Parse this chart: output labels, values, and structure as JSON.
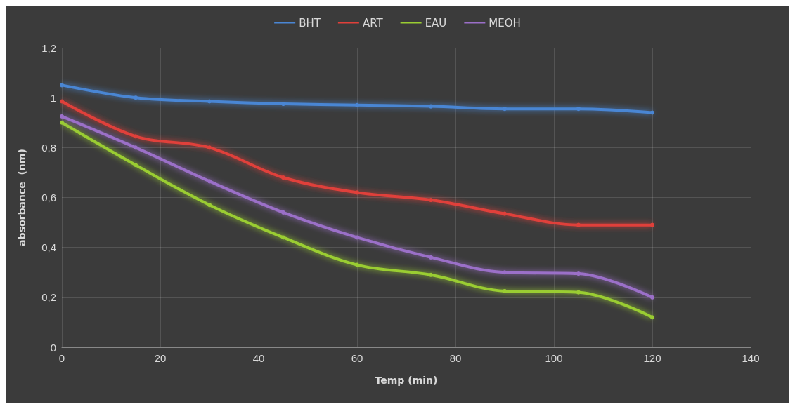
{
  "chart_data": {
    "type": "line",
    "xlabel": "Temp (min)",
    "ylabel": "absorbance  (nm)",
    "x": [
      0,
      15,
      30,
      45,
      60,
      75,
      90,
      105,
      120
    ],
    "series": [
      {
        "name": "BHT",
        "color": "#4a86d4",
        "values": [
          1.05,
          1.0,
          0.985,
          0.975,
          0.97,
          0.965,
          0.955,
          0.955,
          0.94
        ]
      },
      {
        "name": "ART",
        "color": "#e0403a",
        "values": [
          0.985,
          0.845,
          0.8,
          0.68,
          0.62,
          0.59,
          0.535,
          0.49,
          0.49
        ]
      },
      {
        "name": "EAU",
        "color": "#9acd32",
        "values": [
          0.9,
          0.73,
          0.57,
          0.44,
          0.33,
          0.29,
          0.225,
          0.22,
          0.12
        ]
      },
      {
        "name": "MEOH",
        "color": "#9b6fc8",
        "values": [
          0.925,
          0.8,
          0.665,
          0.54,
          0.44,
          0.36,
          0.3,
          0.295,
          0.2
        ]
      }
    ],
    "xlim": [
      0,
      140
    ],
    "xticks": [
      0,
      20,
      40,
      60,
      80,
      100,
      120,
      140
    ],
    "ylim": [
      0,
      1.2
    ],
    "yticks": [
      0,
      {
        "value": 0.2,
        "label": "0,2"
      },
      {
        "value": 0.4,
        "label": "0,4"
      },
      {
        "value": 0.6,
        "label": "0,6"
      },
      {
        "value": 0.8,
        "label": "0,8"
      },
      1,
      {
        "value": 1.2,
        "label": "1,2"
      }
    ],
    "grid": true,
    "legend": "top",
    "marker": "circle",
    "line_style": "solid"
  }
}
